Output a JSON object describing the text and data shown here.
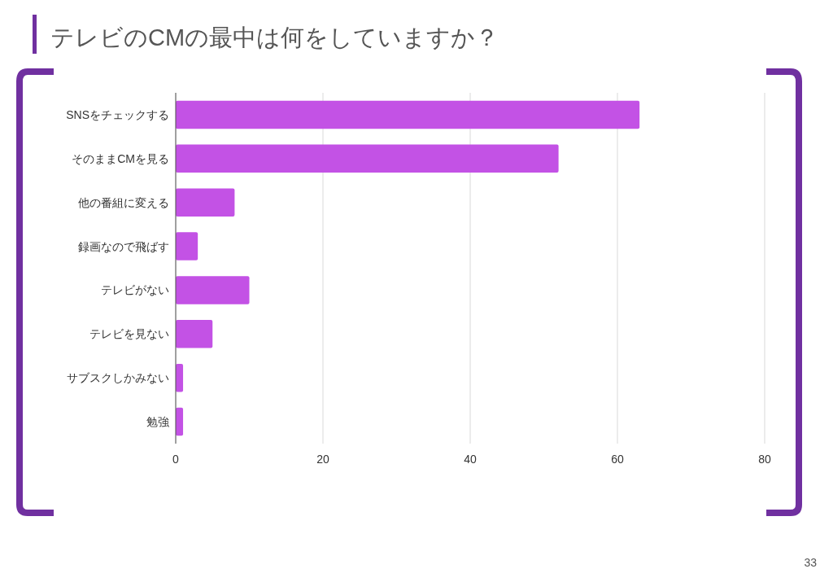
{
  "chart_data": {
    "type": "bar",
    "orientation": "horizontal",
    "title": "テレビのCMの最中は何をしていますか？",
    "categories": [
      "SNSをチェックする",
      "そのままCMを見る",
      "他の番組に変える",
      "録画なので飛ばす",
      "テレビがない",
      "テレビを見ない",
      "サブスクしかみない",
      "勉強"
    ],
    "values": [
      63,
      52,
      8,
      3,
      10,
      5,
      1,
      1
    ],
    "color": "#c352e5",
    "xlim": [
      0,
      80
    ],
    "xticks": [
      0,
      20,
      40,
      60,
      80
    ],
    "grid": "x",
    "annotations": [
      "33"
    ]
  }
}
